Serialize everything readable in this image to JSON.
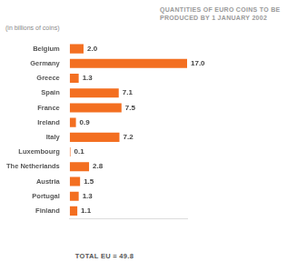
{
  "chart_data": {
    "type": "bar",
    "orientation": "horizontal",
    "title": "QUANTITIES OF EURO COINS TO BE PRODUCED BY 1 JANUARY 2002",
    "subtitle": "(in billions of coins)",
    "categories": [
      "Belgium",
      "Germany",
      "Greece",
      "Spain",
      "France",
      "Ireland",
      "Italy",
      "Luxembourg",
      "The Netherlands",
      "Austria",
      "Portugal",
      "Finland"
    ],
    "values": [
      2.0,
      17.0,
      1.3,
      7.1,
      7.5,
      0.9,
      7.2,
      0.1,
      2.8,
      1.5,
      1.3,
      1.1
    ],
    "value_labels": [
      "2.0",
      "17.0",
      "1.3",
      "7.1",
      "7.5",
      "0.9",
      "7.2",
      "0.1",
      "2.8",
      "1.5",
      "1.3",
      "1.1"
    ],
    "color": "#f36f21",
    "xlim": [
      0,
      17
    ],
    "data_labels": true,
    "tick_labels": "y",
    "grid": false,
    "annotations": [
      "TOTAL EU = 49.8"
    ]
  }
}
